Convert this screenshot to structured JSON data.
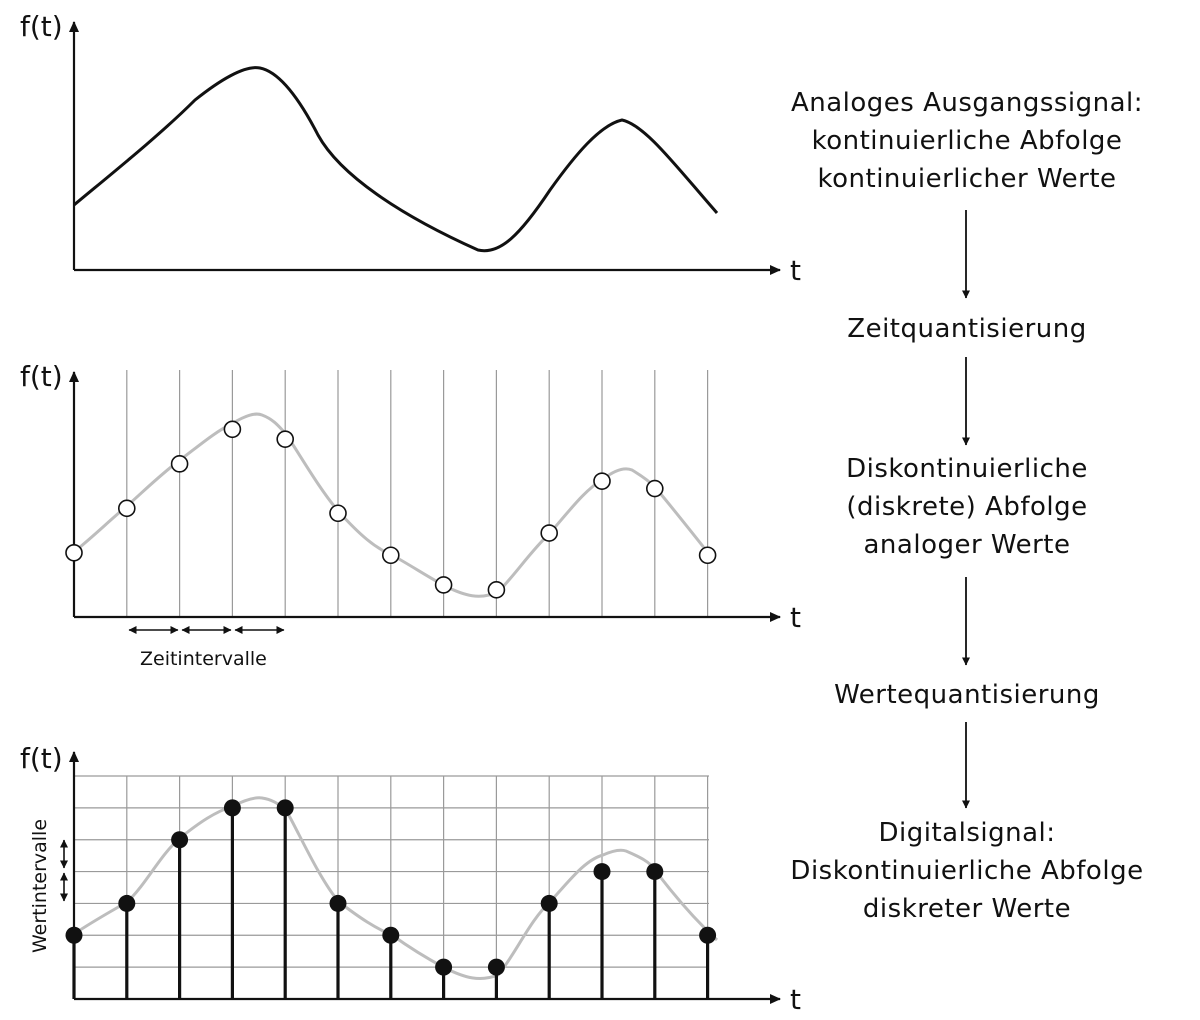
{
  "panels": {
    "analog": {
      "ylabel": "f(t)",
      "xlabel": "t"
    },
    "sampled": {
      "ylabel": "f(t)",
      "xlabel": "t",
      "interval_label": "Zeitintervalle"
    },
    "digital": {
      "ylabel": "f(t)",
      "xlabel": "t",
      "value_interval_label": "Wertintervalle"
    }
  },
  "flow": {
    "step1": [
      "Analoges Ausgangssignal:",
      "kontinuierliche Abfolge",
      "kontinuierlicher Werte"
    ],
    "step2": "Zeitquantisierung",
    "step3": [
      "Diskontinuierliche",
      "(diskrete) Abfolge",
      "analoger Werte"
    ],
    "step4": "Wertequantisierung",
    "step5": [
      "Digitalsignal:",
      "Diskontinuierliche Abfolge",
      "diskreter Werte"
    ]
  },
  "chart_data": {
    "type": "diagram",
    "sample_count": 13,
    "sampled_values": [
      0.26,
      0.44,
      0.62,
      0.76,
      0.72,
      0.42,
      0.25,
      0.13,
      0.11,
      0.34,
      0.55,
      0.52,
      0.25
    ],
    "quantized_levels": [
      2,
      3,
      5,
      6,
      6,
      3,
      2,
      1,
      1,
      3,
      4,
      4,
      2
    ],
    "level_count": 7
  },
  "colors": {
    "ink": "#111111",
    "curve_gray": "#bdbdbd",
    "grid_gray": "#9a9a9a"
  }
}
